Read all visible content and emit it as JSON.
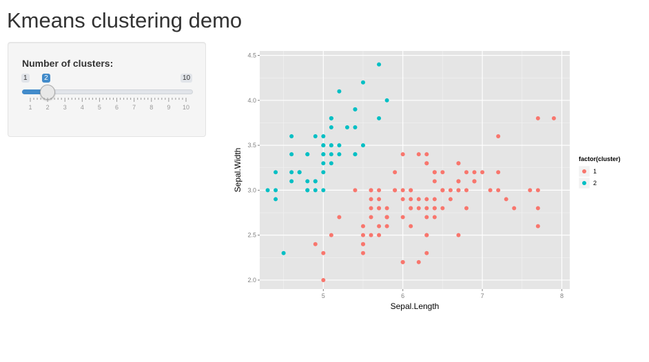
{
  "page": {
    "title": "Kmeans clustering demo"
  },
  "slider": {
    "label": "Number of clusters:",
    "min": 1,
    "max": 10,
    "value": 2,
    "min_label": "1",
    "max_label": "10",
    "value_label": "2",
    "ticks": [
      "1",
      "2",
      "3",
      "4",
      "5",
      "6",
      "7",
      "8",
      "9",
      "10"
    ],
    "accent_color": "#428bca"
  },
  "chart_data": {
    "type": "scatter",
    "xlabel": "Sepal.Length",
    "ylabel": "Sepal.Width",
    "xlim": [
      4.2,
      8.1
    ],
    "ylim": [
      1.9,
      4.55
    ],
    "xticks": [
      5,
      6,
      7,
      8
    ],
    "yticks": [
      2.0,
      2.5,
      3.0,
      3.5,
      4.0,
      4.5
    ],
    "xtick_labels": [
      "5",
      "6",
      "7",
      "8"
    ],
    "ytick_labels": [
      "2.0",
      "2.5",
      "3.0",
      "3.5",
      "4.0",
      "4.5"
    ],
    "grid": true,
    "legend": {
      "title": "factor(cluster)",
      "placement": "right"
    },
    "series": [
      {
        "name": "1",
        "color": "#f8766d",
        "x": [
          7.0,
          6.4,
          6.9,
          5.5,
          6.5,
          5.7,
          6.3,
          4.9,
          6.6,
          5.2,
          5.0,
          5.9,
          6.0,
          6.1,
          5.6,
          6.7,
          5.6,
          5.8,
          6.2,
          5.6,
          5.9,
          6.1,
          6.3,
          6.1,
          6.4,
          6.6,
          6.8,
          6.7,
          6.0,
          5.7,
          5.5,
          5.5,
          5.8,
          6.0,
          5.4,
          6.0,
          6.7,
          6.3,
          5.6,
          5.5,
          5.5,
          6.1,
          5.8,
          5.0,
          5.6,
          5.7,
          5.7,
          6.2,
          5.1,
          5.7,
          6.3,
          5.8,
          7.1,
          6.3,
          6.5,
          7.6,
          7.3,
          6.7,
          7.2,
          6.5,
          6.4,
          6.8,
          5.7,
          5.8,
          6.4,
          6.5,
          7.7,
          7.7,
          6.0,
          6.9,
          5.6,
          7.7,
          6.3,
          6.7,
          7.2,
          6.2,
          6.1,
          6.4,
          7.2,
          7.4,
          7.9,
          6.4,
          6.3,
          6.1,
          7.7,
          6.3,
          6.4,
          6.0,
          6.9,
          6.7,
          6.9,
          5.8,
          6.8,
          6.7,
          6.7,
          6.3,
          6.5,
          6.2,
          5.9
        ],
        "y": [
          3.2,
          3.2,
          3.1,
          2.3,
          2.8,
          2.8,
          3.3,
          2.4,
          2.9,
          2.7,
          2.0,
          3.0,
          2.2,
          2.9,
          2.9,
          3.1,
          3.0,
          2.7,
          2.2,
          2.5,
          3.2,
          2.8,
          2.5,
          2.8,
          2.9,
          3.0,
          2.8,
          3.0,
          2.9,
          2.6,
          2.4,
          2.4,
          2.7,
          2.7,
          3.0,
          3.4,
          3.1,
          2.3,
          3.0,
          2.5,
          2.6,
          3.0,
          2.6,
          2.3,
          2.7,
          3.0,
          2.9,
          2.9,
          2.5,
          2.8,
          3.3,
          2.7,
          3.0,
          2.9,
          3.0,
          3.0,
          2.9,
          2.5,
          3.6,
          3.2,
          2.7,
          3.0,
          2.5,
          2.8,
          3.2,
          3.0,
          3.8,
          2.6,
          2.2,
          3.2,
          2.8,
          2.8,
          2.7,
          3.3,
          3.2,
          2.8,
          3.0,
          2.8,
          3.0,
          2.8,
          3.8,
          2.8,
          2.8,
          2.6,
          3.0,
          3.4,
          3.1,
          3.0,
          3.1,
          3.1,
          3.1,
          2.7,
          3.2,
          3.3,
          3.0,
          2.5,
          3.0,
          3.4,
          3.0
        ]
      },
      {
        "name": "2",
        "color": "#00bfc4",
        "x": [
          5.1,
          4.9,
          4.7,
          4.6,
          5.0,
          5.4,
          4.6,
          5.0,
          4.4,
          4.9,
          5.4,
          4.8,
          4.8,
          4.3,
          5.8,
          5.7,
          5.4,
          5.1,
          5.7,
          5.1,
          5.4,
          5.1,
          4.6,
          5.1,
          4.8,
          5.0,
          5.0,
          5.2,
          5.2,
          4.7,
          4.8,
          5.4,
          5.2,
          5.5,
          4.9,
          5.0,
          5.5,
          4.9,
          4.4,
          5.1,
          5.0,
          4.5,
          4.4,
          5.0,
          5.1,
          4.8,
          5.1,
          4.6,
          5.3,
          5.0
        ],
        "y": [
          3.5,
          3.0,
          3.2,
          3.1,
          3.6,
          3.9,
          3.4,
          3.4,
          2.9,
          3.1,
          3.7,
          3.4,
          3.0,
          3.0,
          4.0,
          4.4,
          3.9,
          3.5,
          3.8,
          3.8,
          3.4,
          3.7,
          3.6,
          3.3,
          3.4,
          3.0,
          3.4,
          3.5,
          3.4,
          3.2,
          3.1,
          3.4,
          4.1,
          4.2,
          3.1,
          3.2,
          3.5,
          3.6,
          3.0,
          3.4,
          3.5,
          2.3,
          3.2,
          3.5,
          3.8,
          3.0,
          3.8,
          3.2,
          3.7,
          3.3
        ]
      }
    ]
  }
}
